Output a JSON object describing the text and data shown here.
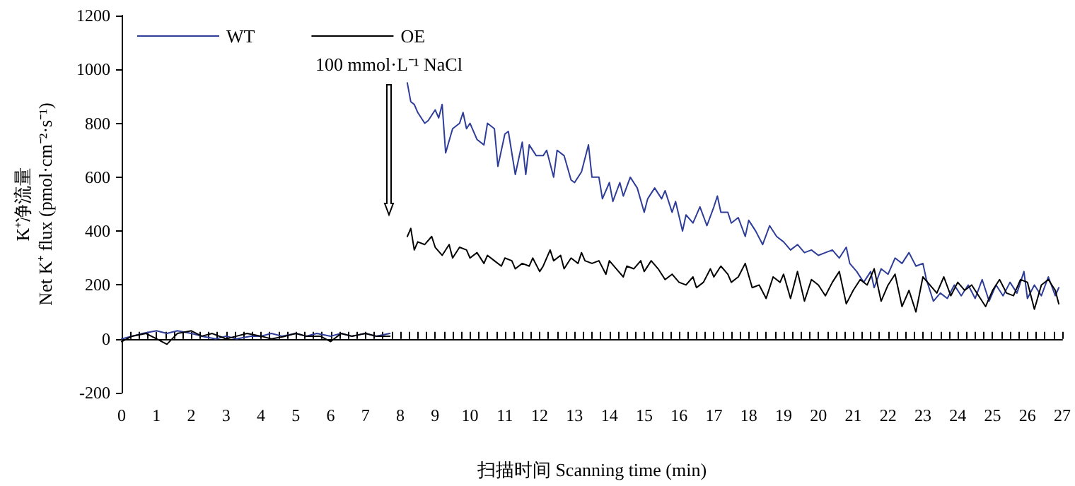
{
  "chart_data": {
    "type": "line",
    "xlabel": "扫描时间 Scanning time (min)",
    "ylabel": "K⁺净流量\nNet K⁺ flux (pmol·cm⁻²·s⁻¹)",
    "xlim": [
      0,
      27
    ],
    "xticks": [
      0,
      1,
      2,
      3,
      4,
      5,
      6,
      7,
      8,
      9,
      10,
      11,
      12,
      13,
      14,
      15,
      16,
      17,
      18,
      19,
      20,
      21,
      22,
      23,
      24,
      25,
      26,
      27
    ],
    "ylim": [
      -200,
      1200
    ],
    "yticks": [
      -200,
      0,
      200,
      400,
      600,
      800,
      1000,
      1200
    ],
    "legend": "top left",
    "marker": "none",
    "line_style": "solid",
    "annotations": [
      "100 mmol·L⁻¹ NaCl"
    ],
    "series": [
      {
        "name": "WT",
        "color": "#2e3d98",
        "x": [
          0,
          0.3,
          0.6,
          1.0,
          1.3,
          1.6,
          2.0,
          2.3,
          2.7,
          3.0,
          3.3,
          3.7,
          4.0,
          4.3,
          4.6,
          5.0,
          5.3,
          5.6,
          6.0,
          6.3,
          6.6,
          7.0,
          7.3,
          7.7,
          7.9,
          8.2,
          8.3,
          8.4,
          8.5,
          8.7,
          8.8,
          9.0,
          9.1,
          9.2,
          9.3,
          9.5,
          9.7,
          9.8,
          9.9,
          10.0,
          10.2,
          10.4,
          10.5,
          10.7,
          10.8,
          11.0,
          11.1,
          11.3,
          11.5,
          11.6,
          11.7,
          11.9,
          12.1,
          12.2,
          12.4,
          12.5,
          12.7,
          12.9,
          13.0,
          13.2,
          13.4,
          13.5,
          13.7,
          13.8,
          14.0,
          14.1,
          14.3,
          14.4,
          14.6,
          14.8,
          15.0,
          15.1,
          15.3,
          15.5,
          15.6,
          15.8,
          15.9,
          16.1,
          16.2,
          16.4,
          16.6,
          16.8,
          17.0,
          17.1,
          17.2,
          17.4,
          17.5,
          17.7,
          17.9,
          18.0,
          18.2,
          18.4,
          18.6,
          18.8,
          19.0,
          19.2,
          19.4,
          19.6,
          19.8,
          20.0,
          20.2,
          20.4,
          20.6,
          20.8,
          20.9,
          21.1,
          21.3,
          21.5,
          21.6,
          21.8,
          22.0,
          22.2,
          22.4,
          22.6,
          22.8,
          23.0,
          23.1,
          23.3,
          23.5,
          23.7,
          23.9,
          24.1,
          24.3,
          24.5,
          24.7,
          24.9,
          25.1,
          25.3,
          25.5,
          25.7,
          25.9,
          26.0,
          26.2,
          26.4,
          26.6,
          26.8,
          26.9
        ],
        "values": [
          0,
          10,
          20,
          30,
          20,
          30,
          20,
          10,
          0,
          10,
          0,
          10,
          10,
          20,
          10,
          20,
          10,
          20,
          10,
          20,
          10,
          20,
          10,
          20,
          null,
          950,
          880,
          870,
          840,
          800,
          810,
          850,
          820,
          870,
          690,
          780,
          800,
          840,
          780,
          800,
          740,
          720,
          800,
          780,
          640,
          760,
          770,
          610,
          730,
          610,
          720,
          680,
          680,
          700,
          600,
          700,
          680,
          590,
          580,
          620,
          720,
          600,
          600,
          520,
          580,
          510,
          580,
          530,
          600,
          560,
          470,
          520,
          560,
          520,
          550,
          470,
          510,
          400,
          460,
          430,
          490,
          420,
          490,
          530,
          470,
          470,
          430,
          450,
          380,
          440,
          400,
          350,
          420,
          380,
          360,
          330,
          350,
          320,
          330,
          310,
          320,
          330,
          300,
          340,
          280,
          250,
          210,
          250,
          190,
          260,
          240,
          300,
          280,
          320,
          270,
          280,
          220,
          140,
          170,
          150,
          200,
          160,
          200,
          150,
          220,
          140,
          200,
          160,
          210,
          170,
          250,
          150,
          200,
          160,
          230,
          160,
          190
        ]
      },
      {
        "name": "OE",
        "color": "#000000",
        "x": [
          0,
          0.3,
          0.7,
          1.0,
          1.3,
          1.6,
          2.0,
          2.3,
          2.6,
          3.0,
          3.3,
          3.6,
          4.0,
          4.3,
          4.7,
          5.0,
          5.3,
          5.7,
          6.0,
          6.3,
          6.6,
          7.0,
          7.3,
          7.7,
          7.9,
          8.2,
          8.3,
          8.4,
          8.5,
          8.7,
          8.9,
          9.0,
          9.2,
          9.4,
          9.5,
          9.7,
          9.9,
          10.0,
          10.2,
          10.4,
          10.5,
          10.7,
          10.9,
          11.0,
          11.2,
          11.3,
          11.5,
          11.7,
          11.8,
          12.0,
          12.1,
          12.3,
          12.4,
          12.6,
          12.7,
          12.9,
          13.1,
          13.2,
          13.3,
          13.5,
          13.7,
          13.9,
          14.0,
          14.2,
          14.4,
          14.5,
          14.7,
          14.9,
          15.0,
          15.2,
          15.4,
          15.6,
          15.8,
          16.0,
          16.2,
          16.4,
          16.5,
          16.7,
          16.9,
          17.0,
          17.2,
          17.4,
          17.5,
          17.7,
          17.9,
          18.1,
          18.3,
          18.5,
          18.7,
          18.9,
          19.0,
          19.2,
          19.4,
          19.6,
          19.8,
          20.0,
          20.2,
          20.4,
          20.6,
          20.8,
          21.0,
          21.2,
          21.4,
          21.6,
          21.8,
          22.0,
          22.2,
          22.4,
          22.6,
          22.8,
          23.0,
          23.2,
          23.4,
          23.6,
          23.8,
          24.0,
          24.2,
          24.4,
          24.6,
          24.8,
          25.0,
          25.2,
          25.4,
          25.6,
          25.8,
          26.0,
          26.2,
          26.4,
          26.6,
          26.8,
          26.9
        ],
        "values": [
          -10,
          10,
          20,
          0,
          -20,
          20,
          30,
          10,
          20,
          0,
          10,
          20,
          10,
          0,
          10,
          20,
          10,
          10,
          -10,
          20,
          10,
          20,
          10,
          10,
          null,
          380,
          410,
          330,
          360,
          350,
          380,
          340,
          310,
          350,
          300,
          340,
          330,
          300,
          320,
          280,
          310,
          290,
          270,
          300,
          290,
          260,
          280,
          270,
          300,
          250,
          270,
          330,
          290,
          310,
          260,
          300,
          280,
          320,
          290,
          280,
          290,
          240,
          290,
          260,
          230,
          270,
          260,
          290,
          250,
          290,
          260,
          220,
          240,
          210,
          200,
          230,
          190,
          210,
          260,
          230,
          270,
          240,
          210,
          230,
          280,
          190,
          200,
          150,
          230,
          210,
          240,
          150,
          250,
          140,
          220,
          200,
          160,
          210,
          250,
          130,
          180,
          220,
          200,
          260,
          140,
          200,
          240,
          120,
          180,
          100,
          230,
          200,
          170,
          230,
          160,
          210,
          180,
          200,
          160,
          120,
          180,
          220,
          170,
          160,
          220,
          210,
          110,
          200,
          220,
          180,
          130
        ]
      }
    ]
  }
}
